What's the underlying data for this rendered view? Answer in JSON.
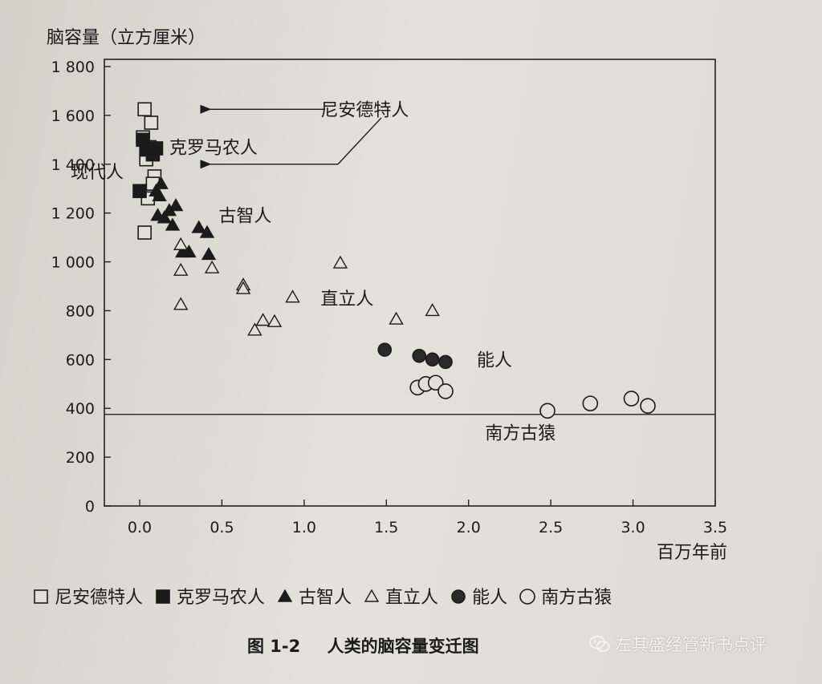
{
  "chart_data": {
    "type": "scatter",
    "ylabel": "脑容量（立方厘米）",
    "xlabel": "百万年前",
    "xlim": [
      0,
      3.5
    ],
    "ylim": [
      0,
      1800
    ],
    "x_ticks": [
      "0.0",
      "0.5",
      "1.0",
      "1.5",
      "2.0",
      "2.5",
      "3.0",
      "3.5"
    ],
    "y_ticks": [
      "0",
      "200",
      "400",
      "600",
      "800",
      "1 000",
      "1 200",
      "1 400",
      "1 600",
      "1 800"
    ],
    "grid": false,
    "legend_position": "bottom",
    "series": [
      {
        "name": "尼安德特人",
        "marker": "open-square",
        "points": [
          [
            0.03,
            1625
          ],
          [
            0.07,
            1570
          ],
          [
            0.02,
            1510
          ],
          [
            0.06,
            1470
          ],
          [
            0.04,
            1420
          ],
          [
            0.09,
            1350
          ],
          [
            0.08,
            1320
          ],
          [
            0.05,
            1260
          ],
          [
            0.03,
            1120
          ]
        ]
      },
      {
        "name": "克罗马农人",
        "marker": "filled-square",
        "points": [
          [
            0.02,
            1500
          ],
          [
            0.04,
            1460
          ],
          [
            0.08,
            1440
          ],
          [
            0.1,
            1465
          ],
          [
            0.0,
            1290
          ]
        ]
      },
      {
        "name": "古智人",
        "marker": "filled-triangle",
        "points": [
          [
            0.13,
            1320
          ],
          [
            0.1,
            1290
          ],
          [
            0.12,
            1270
          ],
          [
            0.18,
            1210
          ],
          [
            0.22,
            1230
          ],
          [
            0.11,
            1190
          ],
          [
            0.15,
            1180
          ],
          [
            0.2,
            1150
          ],
          [
            0.36,
            1140
          ],
          [
            0.41,
            1120
          ],
          [
            0.26,
            1040
          ],
          [
            0.3,
            1040
          ],
          [
            0.42,
            1030
          ]
        ]
      },
      {
        "name": "直立人",
        "marker": "open-triangle",
        "points": [
          [
            0.25,
            1070
          ],
          [
            0.44,
            975
          ],
          [
            0.25,
            965
          ],
          [
            0.25,
            825
          ],
          [
            0.63,
            905
          ],
          [
            0.63,
            890
          ],
          [
            0.93,
            855
          ],
          [
            1.22,
            995
          ],
          [
            1.78,
            800
          ],
          [
            1.56,
            765
          ],
          [
            0.75,
            760
          ],
          [
            0.82,
            755
          ],
          [
            0.7,
            720
          ]
        ]
      },
      {
        "name": "能人",
        "marker": "filled-circle",
        "points": [
          [
            1.49,
            640
          ],
          [
            1.7,
            615
          ],
          [
            1.78,
            600
          ],
          [
            1.86,
            590
          ]
        ]
      },
      {
        "name": "南方古猿",
        "marker": "open-circle",
        "points": [
          [
            1.69,
            485
          ],
          [
            1.74,
            500
          ],
          [
            1.8,
            505
          ],
          [
            1.86,
            470
          ],
          [
            2.48,
            390
          ],
          [
            2.74,
            420
          ],
          [
            2.99,
            440
          ],
          [
            3.09,
            410
          ]
        ]
      }
    ],
    "reference_line_y": 375,
    "annotations": [
      {
        "text": "尼安德特人",
        "x": 1.1,
        "y": 1625
      },
      {
        "text": "克罗马农人",
        "x": 0.18,
        "y": 1470
      },
      {
        "text": "现代人",
        "x": -0.42,
        "y": 1370
      },
      {
        "text": "古智人",
        "x": 0.48,
        "y": 1190
      },
      {
        "text": "直立人",
        "x": 1.1,
        "y": 850
      },
      {
        "text": "能人",
        "x": 2.05,
        "y": 600
      },
      {
        "text": "南方古猿",
        "x": 2.1,
        "y": 300
      }
    ]
  },
  "caption": {
    "number": "图 1-2",
    "title": "人类的脑容量变迁图"
  },
  "watermark": {
    "text": "左其盛经管新书点评",
    "icon": "wechat-icon"
  }
}
